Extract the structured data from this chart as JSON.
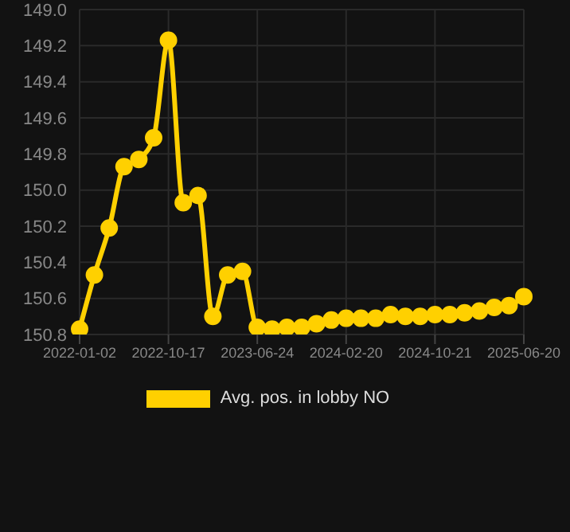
{
  "chart_data": {
    "type": "line",
    "categories": [
      "2022-01-02",
      null,
      null,
      null,
      null,
      null,
      "2022-10-17",
      null,
      null,
      null,
      null,
      null,
      "2023-06-24",
      null,
      null,
      null,
      null,
      null,
      "2024-02-20",
      null,
      null,
      null,
      null,
      null,
      "2024-10-21",
      null,
      null,
      null,
      null,
      null,
      "2025-06-20"
    ],
    "series": [
      {
        "name": "Avg. pos. in lobby NO",
        "color": "#ffd000",
        "values": [
          150.77,
          150.47,
          150.21,
          149.87,
          149.83,
          149.71,
          149.17,
          150.07,
          150.03,
          150.7,
          150.47,
          150.45,
          150.76,
          150.77,
          150.76,
          150.76,
          150.74,
          150.72,
          150.71,
          150.71,
          150.71,
          150.69,
          150.7,
          150.7,
          150.69,
          150.69,
          150.68,
          150.67,
          150.65,
          150.64,
          150.59
        ]
      }
    ],
    "ylim": [
      150.8,
      149.0
    ],
    "yticks": [
      {
        "value": 149.0,
        "label": "149.0"
      },
      {
        "value": 149.2,
        "label": "149.2"
      },
      {
        "value": 149.4,
        "label": "149.4"
      },
      {
        "value": 149.6,
        "label": "149.6"
      },
      {
        "value": 149.8,
        "label": "149.8"
      },
      {
        "value": 150.0,
        "label": "150.0"
      },
      {
        "value": 150.2,
        "label": "150.2"
      },
      {
        "value": 150.4,
        "label": "150.4"
      },
      {
        "value": 150.6,
        "label": "150.6"
      },
      {
        "value": 150.8,
        "label": "150.8"
      }
    ],
    "grid": true,
    "legend": "bottom",
    "marker": "circle",
    "line_style": "solid"
  }
}
